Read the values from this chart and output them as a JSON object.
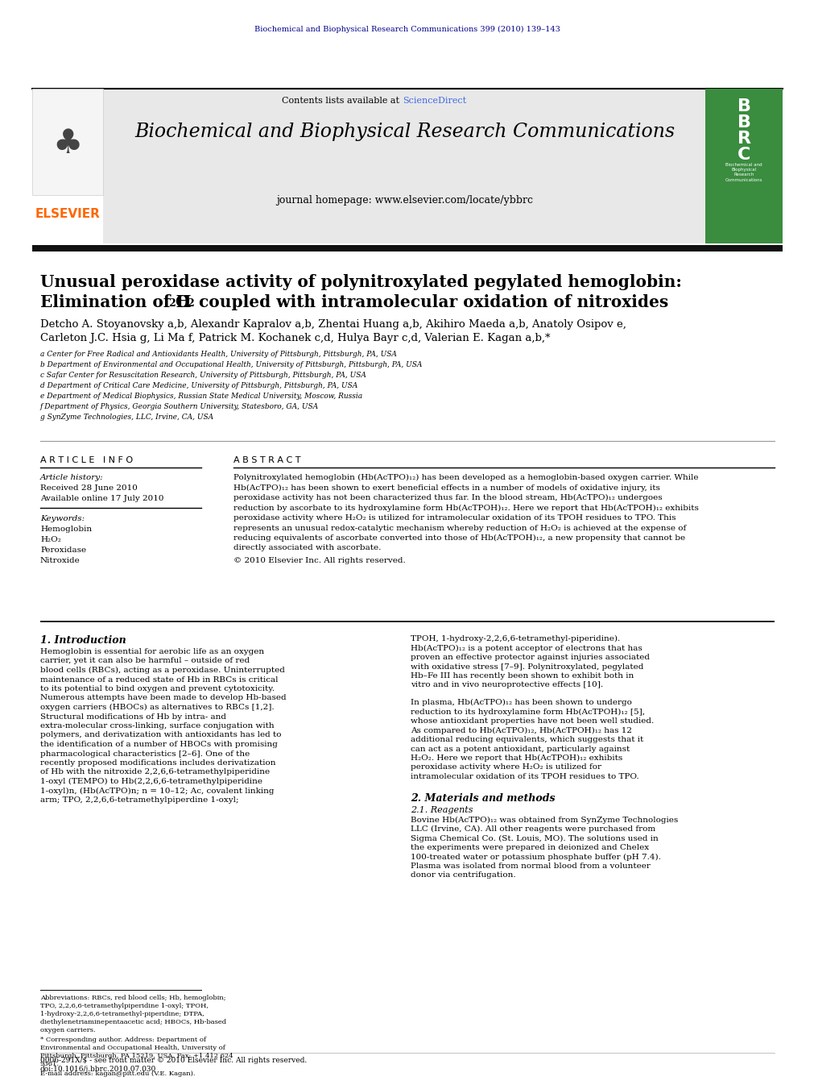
{
  "page_width": 9.92,
  "page_height": 13.23,
  "bg_color": "#ffffff",
  "journal_header_text": "Biochemical and Biophysical Research Communications 399 (2010) 139–143",
  "journal_header_color": "#00008B",
  "journal_name": "Biochemical and Biophysical Research Communications",
  "journal_homepage": "journal homepage: www.elsevier.com/locate/ybbrc",
  "sciencedirect_color": "#4169E1",
  "elsevier_color": "#FF6600",
  "header_bg": "#e8e8e8",
  "article_title_line1": "Unusual peroxidase activity of polynitroxylated pegylated hemoglobin:",
  "authors": "Detcho A. Stoyanovsky a,b, Alexandr Kapralov a,b, Zhentai Huang a,b, Akihiro Maeda a,b, Anatoly Osipov e,",
  "authors2": "Carleton J.C. Hsia g, Li Ma f, Patrick M. Kochanek c,d, Hulya Bayr c,d, Valerian E. Kagan a,b,*",
  "affil_a": "a Center for Free Radical and Antioxidants Health, University of Pittsburgh, Pittsburgh, PA, USA",
  "affil_b": "b Department of Environmental and Occupational Health, University of Pittsburgh, Pittsburgh, PA, USA",
  "affil_c": "c Safar Center for Resuscitation Research, University of Pittsburgh, Pittsburgh, PA, USA",
  "affil_d": "d Department of Critical Care Medicine, University of Pittsburgh, Pittsburgh, PA, USA",
  "affil_e": "e Department of Medical Biophysics, Russian State Medical University, Moscow, Russia",
  "affil_f": "f Department of Physics, Georgia Southern University, Statesboro, GA, USA",
  "affil_g": "g SynZyme Technologies, LLC, Irvine, CA, USA",
  "article_info_title": "A R T I C L E   I N F O",
  "abstract_title": "A B S T R A C T",
  "article_history": "Article history:",
  "received": "Received 28 June 2010",
  "available": "Available online 17 July 2010",
  "keywords_title": "Keywords:",
  "keywords": [
    "Hemoglobin",
    "H₂O₂",
    "Peroxidase",
    "Nitroxide"
  ],
  "abstract_text": "Polynitroxylated hemoglobin (Hb(AcTPO)₁₂) has been developed as a hemoglobin-based oxygen carrier. While Hb(AcTPO)₁₂ has been shown to exert beneficial effects in a number of models of oxidative injury, its peroxidase activity has not been characterized thus far. In the blood stream, Hb(AcTPO)₁₂ undergoes reduction by ascorbate to its hydroxylamine form Hb(AcTPOH)₁₂. Here we report that Hb(AcTPOH)₁₂ exhibits peroxidase activity where H₂O₂ is utilized for intramolecular oxidation of its TPOH residues to TPO. This represents an unusual redox-catalytic mechanism whereby reduction of H₂O₂ is achieved at the expense of reducing equivalents of ascorbate converted into those of Hb(AcTPOH)₁₂, a new propensity that cannot be directly associated with ascorbate.",
  "copyright": "© 2010 Elsevier Inc. All rights reserved.",
  "intro_title": "1. Introduction",
  "intro_text1": "Hemoglobin is essential for aerobic life as an oxygen carrier, yet it can also be harmful – outside of red blood cells (RBCs), acting as a peroxidase. Uninterrupted maintenance of a reduced state of Hb in RBCs is critical to its potential to bind oxygen and prevent cytotoxicity. Numerous attempts have been made to develop Hb-based oxygen carriers (HBOCs) as alternatives to RBCs [1,2]. Structural modifications of Hb by intra- and extra-molecular cross-linking, surface conjugation with polymers, and derivatization with antioxidants has led to the identification of a number of HBOCs with promising pharmacological characteristics [2–6]. One of the recently proposed modifications includes derivatization of Hb with the nitroxide 2,2,6,6-tetramethylpiperidine 1-oxyl (TEMPO) to Hb(2,2,6,6-tetramethylpiperidine 1-oxyl)n, (Hb(AcTPO)n; n = 10–12; Ac, covalent linking arm; TPO, 2,2,6,6-tetramethylpiperdine 1-oxyl;",
  "intro_text2": "TPOH, 1-hydroxy-2,2,6,6-tetramethyl-piperidine). Hb(AcTPO)₁₂ is a potent acceptor of electrons that has proven an effective protector against injuries associated with oxidative stress [7–9]. Polynitroxylated, pegylated Hb–Fe III has recently been shown to exhibit both in vitro and in vivo neuroprotective effects [10].",
  "intro_text3": "In plasma, Hb(AcTPO)₁₂ has been shown to undergo reduction to its hydroxylamine form Hb(AcTPOH)₁₂ [5], whose antioxidant properties have not been well studied. As compared to Hb(AcTPO)₁₂, Hb(AcTPOH)₁₂ has 12 additional reducing equivalents, which suggests that it can act as a potent antioxidant, particularly against H₂O₂. Here we report that Hb(AcTPOH)₁₂ exhibits peroxidase activity where H₂O₂ is utilized for intramolecular oxidation of its TPOH residues to TPO.",
  "methods_title": "2. Materials and methods",
  "methods_sub": "2.1. Reagents",
  "methods_text": "Bovine Hb(AcTPO)₁₂ was obtained from SynZyme Technologies LLC (Irvine, CA). All other reagents were purchased from Sigma Chemical Co. (St. Louis, MO). The solutions used in the experiments were prepared in deionized and Chelex 100-treated water or potassium phosphate buffer (pH 7.4). Plasma was isolated from normal blood from a volunteer donor via centrifugation.",
  "footnote1": "Abbreviations: RBCs, red blood cells; Hb, hemoglobin; TPO, 2,2,6,6-tetramethylpiperidine 1-oxyl; TPOH, 1-hydroxy-2,2,6,6-tetramethyl-piperidine; DTPA, diethylenetriaminepentaacetic acid; HBOCs, Hb-based oxygen carriers.",
  "footnote2": "* Corresponding author. Address: Department of Environmental and Occupational Health, University of Pittsburgh, Pittsburgh, PA 15219, USA. Fax: +1 412 624 9361.",
  "footnote3": "E-mail address: kagan@pitt.edu (V.E. Kagan).",
  "footer_left": "0006-291X/$ - see front matter © 2010 Elsevier Inc. All rights reserved.",
  "footer_doi": "doi:10.1016/j.bbrc.2010.07.030"
}
